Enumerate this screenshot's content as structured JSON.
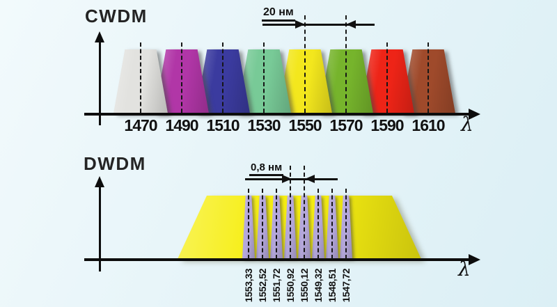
{
  "cwdm": {
    "title": "CWDM",
    "annotation_label": "20 нм",
    "axis_label": "λ",
    "channels": [
      {
        "wavelength": "1470",
        "color": "#e2e2df"
      },
      {
        "wavelength": "1490",
        "color": "#b136a7"
      },
      {
        "wavelength": "1510",
        "color": "#3b3b9f"
      },
      {
        "wavelength": "1530",
        "color": "#78ca97"
      },
      {
        "wavelength": "1550",
        "color": "#f3e71d"
      },
      {
        "wavelength": "1570",
        "color": "#76b42c"
      },
      {
        "wavelength": "1590",
        "color": "#ee2417"
      },
      {
        "wavelength": "1610",
        "color": "#9f4a2b"
      }
    ]
  },
  "dwdm": {
    "title": "DWDM",
    "annotation_label": "0,8 нм",
    "axis_label": "λ",
    "band_color": "#f6ee11",
    "channel_color": "#b4a7da",
    "channels": [
      {
        "wavelength": "1553,33"
      },
      {
        "wavelength": "1552,52"
      },
      {
        "wavelength": "1551,72"
      },
      {
        "wavelength": "1550,92"
      },
      {
        "wavelength": "1550,12"
      },
      {
        "wavelength": "1549,32"
      },
      {
        "wavelength": "1548,51"
      },
      {
        "wavelength": "1547,72"
      }
    ]
  },
  "chart_data": [
    {
      "type": "area",
      "title": "CWDM",
      "categories": [
        1470,
        1490,
        1510,
        1530,
        1550,
        1570,
        1590,
        1610
      ],
      "values": [
        1,
        1,
        1,
        1,
        1,
        1,
        1,
        1
      ],
      "channel_spacing_nm": 20,
      "annotation": "20 нм",
      "xlabel": "λ",
      "legend": "none",
      "grid": false
    },
    {
      "type": "area",
      "title": "DWDM",
      "categories": [
        1553.33,
        1552.52,
        1551.72,
        1550.92,
        1550.12,
        1549.32,
        1548.51,
        1547.72
      ],
      "values": [
        1,
        1,
        1,
        1,
        1,
        1,
        1,
        1
      ],
      "channel_spacing_nm": 0.8,
      "annotation": "0,8 нм",
      "xlabel": "λ",
      "legend": "none",
      "grid": false
    }
  ]
}
